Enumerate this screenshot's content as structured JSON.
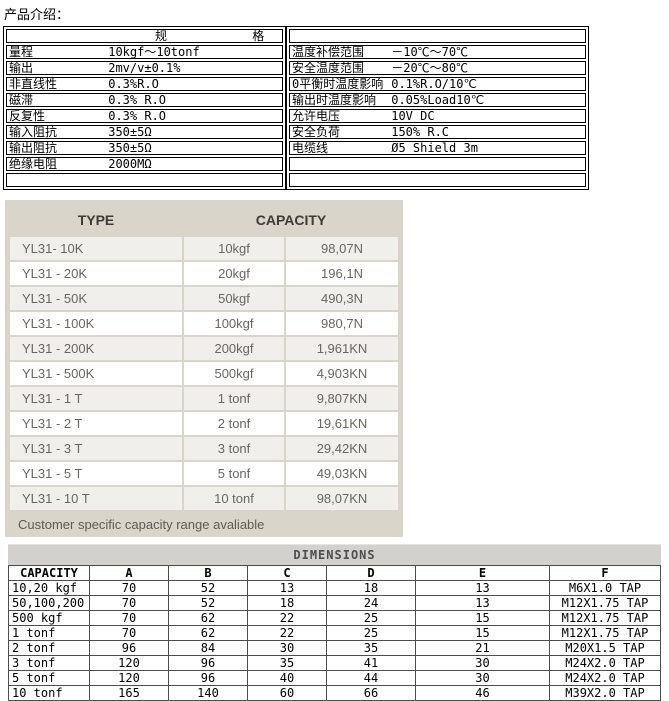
{
  "page": {
    "title": "产品介绍："
  },
  "colors": {
    "capacity_bg": "#d9d5cb",
    "capacity_stripe": "#f0efeb",
    "dims_bar_bg": "#d2d1ce",
    "spec_border": "#000000"
  },
  "spec": {
    "left": {
      "header_char1": "规",
      "header_char2": "格",
      "rows": [
        {
          "label": "量程",
          "value": "10kgf～10tonf"
        },
        {
          "label": "输出",
          "value": "2mv/v±0.1%"
        },
        {
          "label": "非直线性",
          "value": "0.3%R.O"
        },
        {
          "label": "磁滞",
          "value": "0.3% R.O"
        },
        {
          "label": "反复性",
          "value": "0.3% R.O"
        },
        {
          "label": "输入阻抗",
          "value": "350±5Ω"
        },
        {
          "label": "输出阻抗",
          "value": "350±5Ω"
        },
        {
          "label": "绝缘电阻",
          "value": "2000MΩ"
        },
        {
          "label": "",
          "value": ""
        }
      ]
    },
    "right": {
      "rows": [
        {
          "label": "",
          "value": ""
        },
        {
          "label": "温度补偿范围",
          "value": "－10℃～70℃"
        },
        {
          "label": "安全温度范围",
          "value": "－20℃～80℃"
        },
        {
          "label": "0平衡时温度影响",
          "value": "0.1%R.O/10℃"
        },
        {
          "label": "输出时温度影响",
          "value": "0.05%Load10℃"
        },
        {
          "label": "允许电压",
          "value": "10V DC"
        },
        {
          "label": "安全负荷",
          "value": "150% R.C"
        },
        {
          "label": "电缆线",
          "value": "Ø5 Shield 3m"
        },
        {
          "label": "",
          "value": ""
        },
        {
          "label": "",
          "value": ""
        }
      ]
    }
  },
  "capacity_table": {
    "headers": {
      "type": "TYPE",
      "capacity": "CAPACITY"
    },
    "rows": [
      {
        "type": "YL31- 10K",
        "kgf": "10kgf",
        "n": "98,07N"
      },
      {
        "type": "YL31 - 20K",
        "kgf": "20kgf",
        "n": "196,1N"
      },
      {
        "type": "YL31 - 50K",
        "kgf": "50kgf",
        "n": "490,3N"
      },
      {
        "type": "YL31 - 100K",
        "kgf": "100kgf",
        "n": "980,7N"
      },
      {
        "type": "YL31 - 200K",
        "kgf": "200kgf",
        "n": "1,961KN"
      },
      {
        "type": "YL31 - 500K",
        "kgf": "500kgf",
        "n": "4,903KN"
      },
      {
        "type": "YL31 - 1 T",
        "kgf": "1 tonf",
        "n": "9,807KN"
      },
      {
        "type": "YL31 - 2 T",
        "kgf": "2 tonf",
        "n": "19,61KN"
      },
      {
        "type": "YL31 - 3 T",
        "kgf": "3 tonf",
        "n": "29,42KN"
      },
      {
        "type": "YL31 - 5 T",
        "kgf": "5 tonf",
        "n": "49,03KN"
      },
      {
        "type": "YL31 - 10 T",
        "kgf": "10 tonf",
        "n": "98,07KN"
      }
    ],
    "footer": "Customer specific capacity range avaliable"
  },
  "dimensions_table": {
    "title": "DIMENSIONS",
    "columns": [
      "CAPACITY",
      "A",
      "B",
      "C",
      "D",
      "E",
      "F"
    ],
    "rows": [
      {
        "cap": "10,20 kgf",
        "a": "70",
        "b": "52",
        "c": "13",
        "d": "18",
        "e": "13",
        "f": "M6X1.0 TAP"
      },
      {
        "cap": "50,100,200 kgf",
        "a": "70",
        "b": "52",
        "c": "18",
        "d": "24",
        "e": "13",
        "f": "M12X1.75 TAP"
      },
      {
        "cap": "500 kgf",
        "a": "70",
        "b": "62",
        "c": "22",
        "d": "25",
        "e": "15",
        "f": "M12X1.75 TAP"
      },
      {
        "cap": "1 tonf",
        "a": "70",
        "b": "62",
        "c": "22",
        "d": "25",
        "e": "15",
        "f": "M12X1.75 TAP"
      },
      {
        "cap": "2 tonf",
        "a": "96",
        "b": "84",
        "c": "30",
        "d": "35",
        "e": "21",
        "f": "M20X1.5 TAP"
      },
      {
        "cap": "3 tonf",
        "a": "120",
        "b": "96",
        "c": "35",
        "d": "41",
        "e": "30",
        "f": "M24X2.0 TAP"
      },
      {
        "cap": "5 tonf",
        "a": "120",
        "b": "96",
        "c": "40",
        "d": "44",
        "e": "30",
        "f": "M24X2.0 TAP"
      },
      {
        "cap": "10 tonf",
        "a": "165",
        "b": "140",
        "c": "60",
        "d": "66",
        "e": "46",
        "f": "M39X2.0 TAP"
      }
    ]
  }
}
